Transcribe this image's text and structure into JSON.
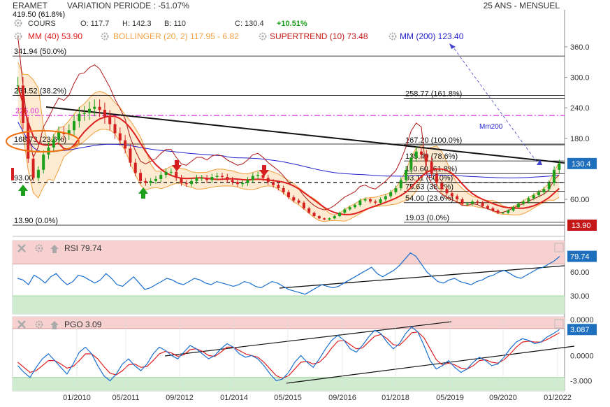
{
  "header": {
    "symbol": "ERAMET",
    "variation": "VARIATION PERIODE : -51.07%",
    "period": "25 ANS - MENSUEL",
    "series": "COURS",
    "open": "O: 117.7",
    "high": "H: 142.3",
    "low": "B: 110",
    "close": "C: 130.4",
    "change": "+10.51%",
    "clipped_top_value": "419.50 (61.8%)"
  },
  "colors": {
    "up": "#1aa01a",
    "down": "#d42020",
    "mm40": "#e02020",
    "bollinger": "#f0a040",
    "bollinger_fill": "#fde6c8",
    "supertrend": "#b01818",
    "supertrend_up": "#18a018",
    "mm200": "#2222cc",
    "fib_line": "#000000",
    "pink_line": "#e030e0",
    "rsi": "#1a6fd0",
    "pgo": "#1a6fd0",
    "signal": "#e02020",
    "overbought": "#f7d0d0",
    "oversold": "#d0ecd0"
  },
  "legend": {
    "mm40": "MM (40) 53.90",
    "bollinger": "BOLLINGER (20, 2) 117.95 - 6.82",
    "supertrend": "SUPERTREND (10) 73.48",
    "mm200": "MM (200) 123.40"
  },
  "icons": [
    "close-icon",
    "gear-icon",
    "up-arrow-icon",
    "down-arrow-icon"
  ],
  "chart_data": [
    {
      "type": "candlestick",
      "title": "ERAMET",
      "x_tick_labels": [
        "01/2010",
        "05/2011",
        "09/2012",
        "01/2014",
        "05/2015",
        "09/2016",
        "01/2018",
        "05/2019",
        "09/2020",
        "01/2022"
      ],
      "y_tick_labels": [
        "360.0",
        "300.0",
        "240.0",
        "180.0",
        "60.00"
      ],
      "ylim": [
        0,
        395
      ],
      "grid": false,
      "last_value": "130.4",
      "fib_left": [
        {
          "label": "341.94 (50.0%)",
          "value": 341.94
        },
        {
          "label": "264.52 (38.2%)",
          "value": 264.52
        },
        {
          "label": "168.73 (23.6%)",
          "value": 168.73
        },
        {
          "label": "93.00",
          "value": 93.0
        },
        {
          "label": "13.90 (0.0%)",
          "value": 13.9
        }
      ],
      "fib_right": [
        {
          "label": "258.77 (161.8%)",
          "value": 258.77
        },
        {
          "label": "167.20 (100.0%)",
          "value": 167.2
        },
        {
          "label": "135.49 (78.6%)",
          "value": 135.49
        },
        {
          "label": "110.60 (61.8%)",
          "value": 110.6
        },
        {
          "label": "93.11 (50.0%)",
          "value": 93.11
        },
        {
          "label": "75.63 (38.2%)",
          "value": 75.63
        },
        {
          "label": "54.00 (23.6%)",
          "value": 54.0
        },
        {
          "label": "19.03 (0.0%)",
          "value": 19.03
        }
      ],
      "pink_level": {
        "label": "225.00",
        "value": 225.0
      },
      "annotations": [
        "Mm200",
        "13.90"
      ],
      "close_values": [
        284,
        210,
        140,
        102,
        118,
        148,
        162,
        178,
        192,
        188,
        196,
        214,
        228,
        230,
        238,
        242,
        236,
        222,
        208,
        190,
        176,
        160,
        132,
        112,
        96,
        92,
        96,
        100,
        108,
        114,
        114,
        102,
        92,
        90,
        96,
        102,
        102,
        98,
        104,
        106,
        104,
        98,
        94,
        90,
        92,
        98,
        106,
        108,
        102,
        94,
        88,
        82,
        74,
        64,
        58,
        54,
        44,
        36,
        30,
        26,
        24,
        26,
        30,
        36,
        42,
        46,
        50,
        58,
        60,
        56,
        54,
        60,
        66,
        74,
        82,
        98,
        118,
        142,
        154,
        148,
        134,
        110,
        92,
        80,
        72,
        66,
        60,
        52,
        52,
        56,
        54,
        48,
        44,
        40,
        36,
        36,
        40,
        46,
        52,
        56,
        62,
        68,
        74,
        80,
        92,
        118,
        130.4
      ]
    },
    {
      "type": "line",
      "title": "RSI",
      "series_labels": [
        "RSI"
      ],
      "legend_value": "RSI 79.74",
      "last_value": "79.74",
      "y_tick_labels": [
        "60.00",
        "30.00",
        "0.0000"
      ],
      "ylim": [
        0,
        100
      ],
      "overbought": 70,
      "oversold": 30,
      "values": [
        52,
        50,
        44,
        56,
        52,
        46,
        54,
        58,
        50,
        44,
        48,
        56,
        54,
        50,
        46,
        50,
        58,
        52,
        44,
        42,
        48,
        54,
        46,
        38,
        40,
        44,
        48,
        52,
        50,
        46,
        44,
        48,
        52,
        50,
        46,
        44,
        48,
        46,
        44,
        42,
        44,
        48,
        46,
        42,
        40,
        44,
        48,
        46,
        42,
        38,
        36,
        34,
        32,
        36,
        40,
        44,
        42,
        40,
        42,
        46,
        50,
        54,
        58,
        62,
        66,
        58,
        54,
        58,
        62,
        68,
        76,
        84,
        80,
        70,
        60,
        54,
        48,
        46,
        50,
        52,
        48,
        46,
        44,
        48,
        50,
        54,
        56,
        60,
        62,
        58,
        54,
        52,
        56,
        60,
        64,
        66,
        70,
        74,
        79.74
      ]
    },
    {
      "type": "line",
      "title": "PGO",
      "series_labels": [
        "PGO",
        "Signal"
      ],
      "legend_value": "PGO 3.09",
      "last_value": "3.087",
      "y_tick_labels": [
        "0.0000",
        "-3.000"
      ],
      "ylim": [
        -4.2,
        4.6
      ],
      "pgo": [
        -1.2,
        -2.0,
        -2.6,
        -1.4,
        -0.4,
        0.2,
        -0.6,
        -1.4,
        -2.2,
        -1.0,
        0.4,
        1.0,
        0.2,
        -1.2,
        -2.4,
        -3.0,
        -2.2,
        -1.0,
        -0.4,
        -1.2,
        -1.8,
        -1.0,
        0.2,
        1.0,
        0.6,
        0.0,
        -0.4,
        0.4,
        1.2,
        0.8,
        0.2,
        -0.4,
        0.0,
        0.8,
        1.4,
        1.0,
        0.2,
        -0.2,
        0.0,
        -0.4,
        -1.2,
        -2.2,
        -3.0,
        -2.8,
        -2.0,
        -0.8,
        0.0,
        -0.8,
        -1.4,
        -0.4,
        0.8,
        1.8,
        2.4,
        1.8,
        0.8,
        0.4,
        1.2,
        2.2,
        3.0,
        2.6,
        1.6,
        0.8,
        1.4,
        2.6,
        3.4,
        2.8,
        1.2,
        -0.6,
        -1.6,
        -1.2,
        -0.6,
        -1.4,
        -2.0,
        -1.6,
        -0.8,
        -0.2,
        -0.6,
        -1.2,
        -1.0,
        -0.2,
        0.8,
        1.6,
        2.0,
        1.8,
        1.4,
        1.6,
        2.2,
        2.6,
        3.087
      ],
      "signal": [
        -0.8,
        -1.4,
        -2.0,
        -1.8,
        -1.2,
        -0.6,
        -0.6,
        -1.0,
        -1.5,
        -1.3,
        -0.6,
        0.2,
        0.2,
        -0.4,
        -1.3,
        -2.1,
        -2.3,
        -1.8,
        -1.1,
        -1.0,
        -1.4,
        -1.3,
        -0.6,
        0.2,
        0.5,
        0.3,
        -0.1,
        0.1,
        0.7,
        0.8,
        0.5,
        0.0,
        -0.1,
        0.4,
        1.0,
        1.0,
        0.6,
        0.2,
        0.0,
        -0.2,
        -0.8,
        -1.6,
        -2.4,
        -2.7,
        -2.4,
        -1.6,
        -0.8,
        -0.7,
        -1.0,
        -0.8,
        -0.1,
        0.9,
        1.7,
        1.8,
        1.3,
        0.8,
        0.9,
        1.6,
        2.3,
        2.5,
        2.0,
        1.3,
        1.2,
        1.9,
        2.7,
        2.8,
        2.1,
        0.8,
        -0.5,
        -1.1,
        -0.9,
        -1.1,
        -1.5,
        -1.6,
        -1.2,
        -0.6,
        -0.5,
        -0.8,
        -0.9,
        -0.5,
        0.2,
        1.0,
        1.6,
        1.7,
        1.6,
        1.6,
        1.9,
        2.3,
        2.7
      ]
    }
  ]
}
